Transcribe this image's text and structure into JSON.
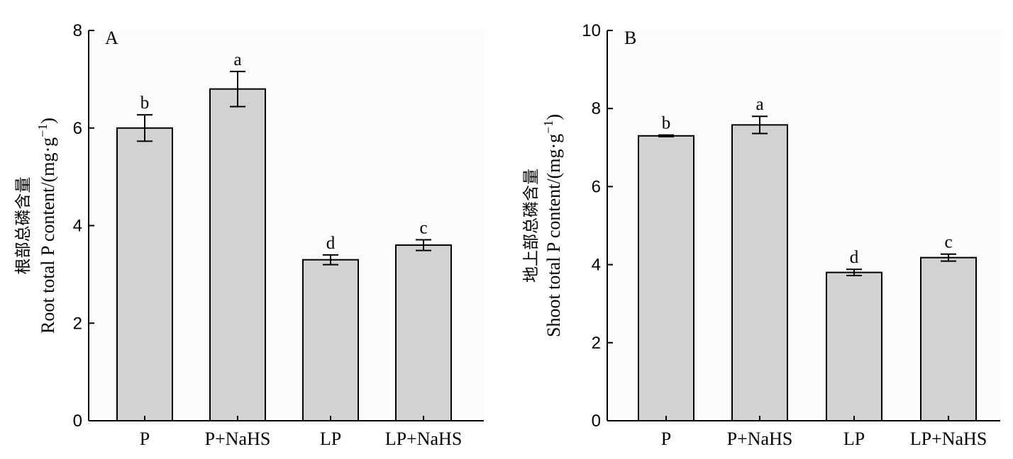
{
  "chart_data": [
    {
      "type": "bar",
      "panel_label": "A",
      "categories": [
        "P",
        "P+NaHS",
        "LP",
        "LP+NaHS"
      ],
      "values": [
        6.0,
        6.8,
        3.3,
        3.6
      ],
      "errors": [
        0.27,
        0.36,
        0.1,
        0.11
      ],
      "significance": [
        "b",
        "a",
        "d",
        "c"
      ],
      "ylabel_cn": "根部总磷含量",
      "ylabel_en": "Root total P content/(mg·g",
      "ylabel_sup": "−1",
      "ylabel_end": ")",
      "ylim": [
        0,
        8
      ],
      "yticks": [
        0,
        2,
        4,
        6,
        8
      ],
      "grid": false
    },
    {
      "type": "bar",
      "panel_label": "B",
      "categories": [
        "P",
        "P+NaHS",
        "LP",
        "LP+NaHS"
      ],
      "values": [
        7.3,
        7.58,
        3.8,
        4.18
      ],
      "errors": [
        0.02,
        0.22,
        0.08,
        0.09
      ],
      "significance": [
        "b",
        "a",
        "d",
        "c"
      ],
      "ylabel_cn": "地上部总磷含量",
      "ylabel_en": "Shoot total P content/(mg·g",
      "ylabel_sup": "−1",
      "ylabel_end": ")",
      "ylim": [
        0,
        10
      ],
      "yticks": [
        0,
        2,
        4,
        6,
        8,
        10
      ],
      "grid": false
    }
  ]
}
